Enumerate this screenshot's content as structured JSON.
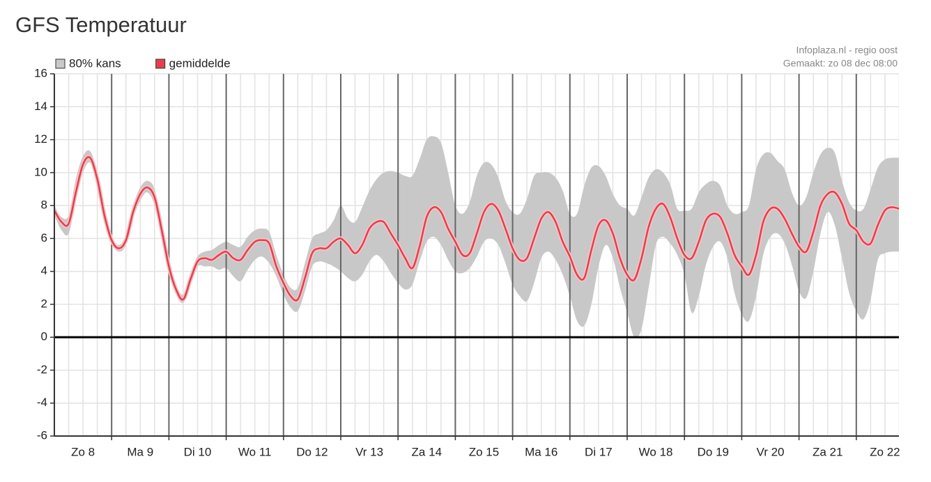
{
  "chart_data": {
    "type": "line",
    "title": "GFS Temperatuur",
    "annotations": [
      "Infoplaza.nl - regio oost",
      "Gemaakt: zo 08 dec 08:00"
    ],
    "categories": [
      "Zo 8",
      "Ma 9",
      "Di 10",
      "Wo 11",
      "Do 12",
      "Vr 13",
      "Za 14",
      "Zo 15",
      "Ma 16",
      "Di 17",
      "Wo 18",
      "Do 19",
      "Vr 20",
      "Za 21",
      "Zo 22"
    ],
    "series": [
      {
        "name": "80% kans",
        "color": "#c8c8c8",
        "low": [
          [
            7.4,
            6.5,
            6.3,
            8.3,
            10.0,
            10.6,
            9.3,
            7.2
          ],
          [
            5.7,
            5.2,
            5.6,
            7.2,
            8.3,
            8.8,
            8.0,
            6.0
          ],
          [
            4.0,
            2.6,
            2.1,
            3.2,
            4.3,
            4.3,
            4.3,
            4.1
          ],
          [
            4.2,
            3.7,
            3.4,
            4.1,
            4.7,
            4.9,
            4.5,
            3.7
          ],
          [
            2.6,
            1.8,
            1.6,
            2.8,
            4.3,
            4.6,
            4.5,
            4.3
          ],
          [
            4.0,
            3.6,
            3.4,
            3.8,
            4.6,
            5.0,
            4.6,
            3.9
          ],
          [
            3.3,
            2.9,
            3.2,
            4.6,
            5.8,
            6.1,
            5.6,
            4.7
          ],
          [
            4.0,
            3.9,
            4.2,
            4.9,
            5.8,
            6.0,
            5.6,
            4.5
          ],
          [
            3.2,
            2.5,
            2.2,
            3.3,
            4.8,
            5.2,
            4.7,
            3.8
          ],
          [
            2.5,
            1.0,
            0.7,
            2.0,
            4.3,
            5.6,
            4.8,
            3.0
          ],
          [
            1.5,
            0.0,
            0.5,
            3.0,
            5.6,
            6.1,
            5.7,
            5.0
          ],
          [
            3.8,
            1.5,
            2.5,
            4.4,
            5.5,
            5.8,
            4.8,
            2.7
          ],
          [
            1.4,
            1.0,
            2.5,
            5.0,
            6.1,
            6.3,
            5.7,
            4.4
          ],
          [
            2.8,
            2.4,
            4.0,
            6.3,
            7.6,
            6.8,
            4.8,
            2.7
          ],
          [
            1.6,
            1.1,
            2.3,
            4.7,
            5.1,
            5.2,
            5.2
          ]
        ],
        "high": [
          [
            8.0,
            7.3,
            7.4,
            9.6,
            11.0,
            11.3,
            10.0,
            7.7
          ],
          [
            6.1,
            5.6,
            6.2,
            8.0,
            9.1,
            9.5,
            9.0,
            7.0
          ],
          [
            4.6,
            3.2,
            2.6,
            3.9,
            4.9,
            5.2,
            5.3,
            5.6
          ],
          [
            5.8,
            5.6,
            5.5,
            6.1,
            6.5,
            6.6,
            6.4,
            5.0
          ],
          [
            3.8,
            3.0,
            3.0,
            4.5,
            6.0,
            6.3,
            6.5,
            7.1
          ],
          [
            8.0,
            7.2,
            7.0,
            7.9,
            8.9,
            9.6,
            10.0,
            10.1
          ],
          [
            10.0,
            9.8,
            9.8,
            10.8,
            12.0,
            12.2,
            11.8,
            10.0
          ],
          [
            8.0,
            7.5,
            8.2,
            9.8,
            10.6,
            10.5,
            9.7,
            8.3
          ],
          [
            7.6,
            7.5,
            8.4,
            9.8,
            10.0,
            10.0,
            9.7,
            8.9
          ],
          [
            7.5,
            7.5,
            9.2,
            10.3,
            10.4,
            9.8,
            8.7,
            8.0
          ],
          [
            7.8,
            7.4,
            8.5,
            9.7,
            10.2,
            10.0,
            9.3,
            7.8
          ],
          [
            7.7,
            7.8,
            8.8,
            9.3,
            9.5,
            9.2,
            8.0,
            7.5
          ],
          [
            7.6,
            8.0,
            10.2,
            11.1,
            11.2,
            10.7,
            10.2,
            8.8
          ],
          [
            8.0,
            8.5,
            10.0,
            11.1,
            11.5,
            11.2,
            9.5,
            8.2
          ],
          [
            7.7,
            7.8,
            9.0,
            10.3,
            10.8,
            10.9,
            10.9
          ]
        ]
      },
      {
        "name": "gemiddelde",
        "color": "#e2404c",
        "values": [
          [
            7.7,
            7.0,
            6.9,
            8.8,
            10.5,
            10.9,
            9.6,
            7.4
          ],
          [
            5.9,
            5.4,
            5.9,
            7.6,
            8.7,
            9.1,
            8.5,
            6.5
          ],
          [
            4.3,
            2.9,
            2.3,
            3.5,
            4.6,
            4.8,
            4.7,
            5.0
          ],
          [
            5.2,
            4.8,
            4.7,
            5.3,
            5.8,
            5.9,
            5.7,
            4.3
          ],
          [
            3.3,
            2.5,
            2.3,
            3.6,
            5.1,
            5.4,
            5.4,
            5.8
          ],
          [
            6.0,
            5.6,
            5.1,
            5.6,
            6.6,
            7.0,
            7.0,
            6.3
          ],
          [
            5.6,
            4.8,
            4.2,
            5.5,
            7.3,
            7.9,
            7.6,
            6.6
          ],
          [
            5.8,
            5.0,
            5.1,
            6.3,
            7.6,
            8.1,
            7.7,
            6.6
          ],
          [
            5.4,
            4.7,
            4.8,
            6.0,
            7.2,
            7.6,
            7.0,
            5.8
          ],
          [
            4.9,
            3.8,
            3.6,
            5.3,
            6.8,
            7.1,
            6.3,
            4.8
          ],
          [
            3.8,
            3.5,
            4.8,
            6.7,
            7.8,
            8.1,
            7.3,
            6.0
          ],
          [
            5.0,
            4.8,
            5.8,
            7.1,
            7.5,
            7.3,
            6.3,
            5.0
          ],
          [
            4.3,
            3.8,
            5.0,
            7.0,
            7.8,
            7.8,
            7.2,
            6.3
          ],
          [
            5.5,
            5.2,
            6.4,
            8.0,
            8.7,
            8.8,
            8.1,
            6.9
          ],
          [
            6.5,
            5.8,
            5.7,
            6.8,
            7.7,
            7.9,
            7.8
          ]
        ]
      }
    ],
    "ylim": [
      -6,
      16
    ],
    "yticks": [
      -6,
      -4,
      -2,
      0,
      2,
      4,
      6,
      8,
      10,
      12,
      14,
      16
    ],
    "grid": true,
    "legend": "top-left"
  }
}
